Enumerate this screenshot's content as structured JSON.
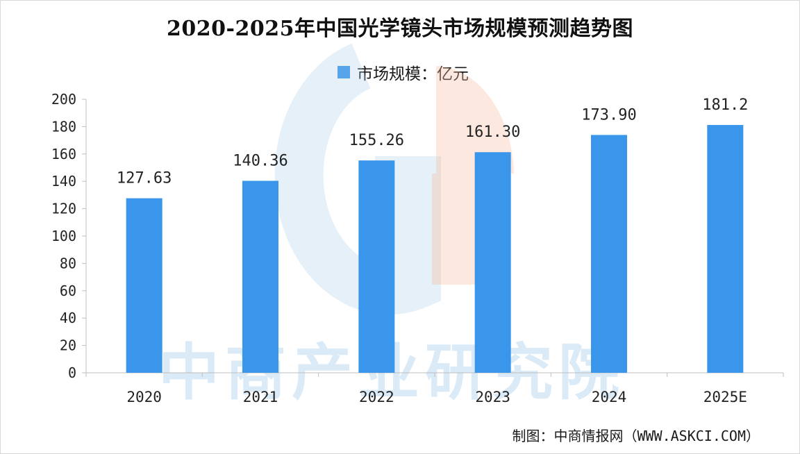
{
  "chart_data": {
    "type": "bar",
    "title": "2020-2025年中国光学镜头市场规模预测趋势图",
    "categories": [
      "2020",
      "2021",
      "2022",
      "2023",
      "2024",
      "2025E"
    ],
    "series": [
      {
        "name": "市场规模：亿元",
        "values": [
          127.63,
          140.36,
          155.26,
          161.3,
          173.9,
          181.2
        ],
        "value_labels": [
          "127.63",
          "140.36",
          "155.26",
          "161.30",
          "173.90",
          "181.2"
        ],
        "color": "#3a96ea"
      }
    ],
    "ylim": [
      0,
      200
    ],
    "yticks": [
      "0",
      "20",
      "40",
      "60",
      "80",
      "100",
      "120",
      "140",
      "160",
      "180",
      "200"
    ],
    "grid": false,
    "legend_position": "top-center"
  },
  "source": "制图：中商情报网（WWW.ASKCI.COM）",
  "watermark": "中商产业研究院"
}
